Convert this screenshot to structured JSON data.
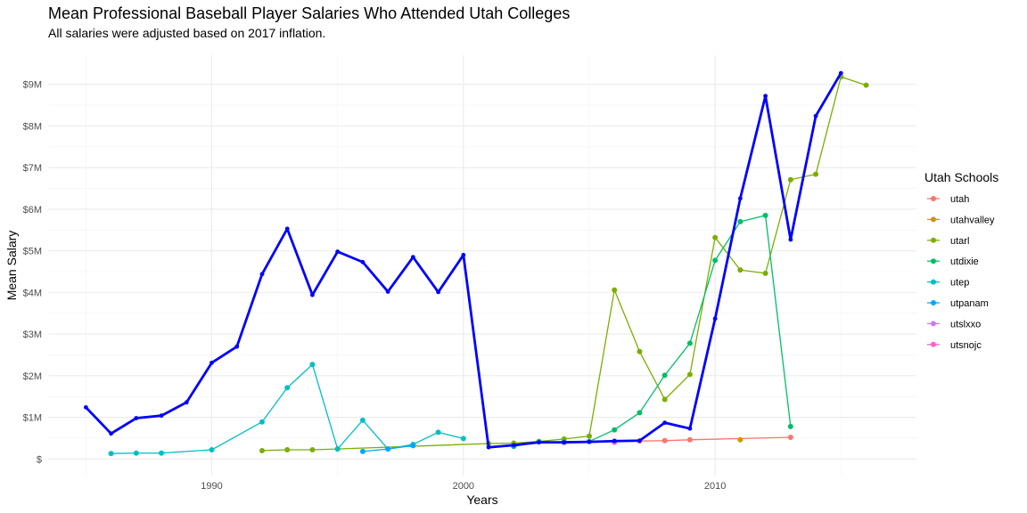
{
  "title": "Mean Professional Baseball Player Salaries Who Attended Utah Colleges",
  "subtitle": "All salaries were adjusted based on 2017 inflation.",
  "chart_data": {
    "type": "line",
    "title": "Mean Professional Baseball Player Salaries Who Attended Utah Colleges",
    "subtitle": "All salaries were adjusted based on 2017 inflation.",
    "xlabel": "Years",
    "ylabel": "Mean Salary",
    "xlim": [
      1983.5,
      2018
    ],
    "ylim": [
      -0.4,
      9.7
    ],
    "x_ticks": [
      1990,
      2000,
      2010
    ],
    "y_ticks": [
      0,
      1,
      2,
      3,
      4,
      5,
      6,
      7,
      8,
      9
    ],
    "y_tick_labels": [
      "$",
      "$1M",
      "$2M",
      "$3M",
      "$4M",
      "$5M",
      "$6M",
      "$7M",
      "$8M",
      "$9M"
    ],
    "y_unit": "millions USD",
    "grid": true,
    "legend": {
      "title": "Utah Schools",
      "position": "right"
    },
    "series": [
      {
        "name": "utah",
        "color": "#F8766D",
        "x": [
          2006,
          2007,
          2008,
          2009,
          2013
        ],
        "y": [
          0.42,
          0.43,
          0.44,
          0.46,
          0.52
        ]
      },
      {
        "name": "utahvalley",
        "color": "#CD9600",
        "x": [
          2011
        ],
        "y": [
          0.46
        ]
      },
      {
        "name": "utarl",
        "color": "#7CAE00",
        "x": [
          1992,
          1993,
          1994,
          1995,
          2001,
          2002,
          2003,
          2004,
          2005,
          2006,
          2007,
          2008,
          2009,
          2010,
          2011,
          2012,
          2013,
          2014,
          2015,
          2016
        ],
        "y": [
          0.2,
          0.22,
          0.22,
          0.24,
          0.37,
          0.38,
          0.42,
          0.48,
          0.55,
          4.06,
          2.58,
          1.43,
          2.03,
          5.32,
          4.54,
          4.46,
          6.71,
          6.84,
          9.18,
          8.98
        ]
      },
      {
        "name": "utdixie",
        "color": "#00BE67",
        "x": [
          2002,
          2003,
          2004,
          2005,
          2006,
          2007,
          2008,
          2009,
          2010,
          2011,
          2012,
          2013
        ],
        "y": [
          0.3,
          0.41,
          0.41,
          0.42,
          0.7,
          1.11,
          2.01,
          2.78,
          4.77,
          5.7,
          5.85,
          0.78
        ]
      },
      {
        "name": "utep",
        "color": "#00BFC4",
        "x": [
          1986,
          1987,
          1988,
          1990,
          1992,
          1993,
          1994,
          1995,
          1996,
          1997,
          1998,
          1999,
          2000
        ],
        "y": [
          0.13,
          0.14,
          0.14,
          0.22,
          0.89,
          1.71,
          2.27,
          0.24,
          0.93,
          0.24,
          0.35,
          0.64,
          0.49
        ]
      },
      {
        "name": "utpanam",
        "color": "#00A9FF",
        "x": [
          1996,
          1997,
          1998
        ],
        "y": [
          0.18,
          0.24,
          0.32
        ]
      },
      {
        "name": "utslxxo",
        "color": "#C77CFF",
        "x": [
          2004,
          2006
        ],
        "y": [
          0.39,
          0.43
        ]
      },
      {
        "name": "utsnojc",
        "color": "#FF61CC",
        "x": [
          2006
        ],
        "y": [
          0.4
        ]
      },
      {
        "color": "#0000FF",
        "x": [
          1985,
          1986,
          1987,
          1988,
          1989,
          1990,
          1991,
          1992,
          1993,
          1994,
          1995,
          1996,
          1997,
          1998,
          1999,
          2000,
          2001,
          2002,
          2003,
          2004,
          2005,
          2006,
          2007,
          2008,
          2009,
          2010,
          2011,
          2012,
          2013,
          2014,
          2015
        ],
        "y": [
          1.24,
          0.61,
          0.98,
          1.04,
          1.36,
          2.31,
          2.7,
          4.44,
          5.53,
          3.94,
          4.98,
          4.73,
          4.02,
          4.85,
          4.01,
          4.9,
          0.28,
          0.33,
          0.4,
          0.4,
          0.41,
          0.43,
          0.44,
          0.87,
          0.73,
          3.37,
          6.26,
          8.72,
          5.27,
          8.24,
          9.27
        ]
      }
    ]
  }
}
